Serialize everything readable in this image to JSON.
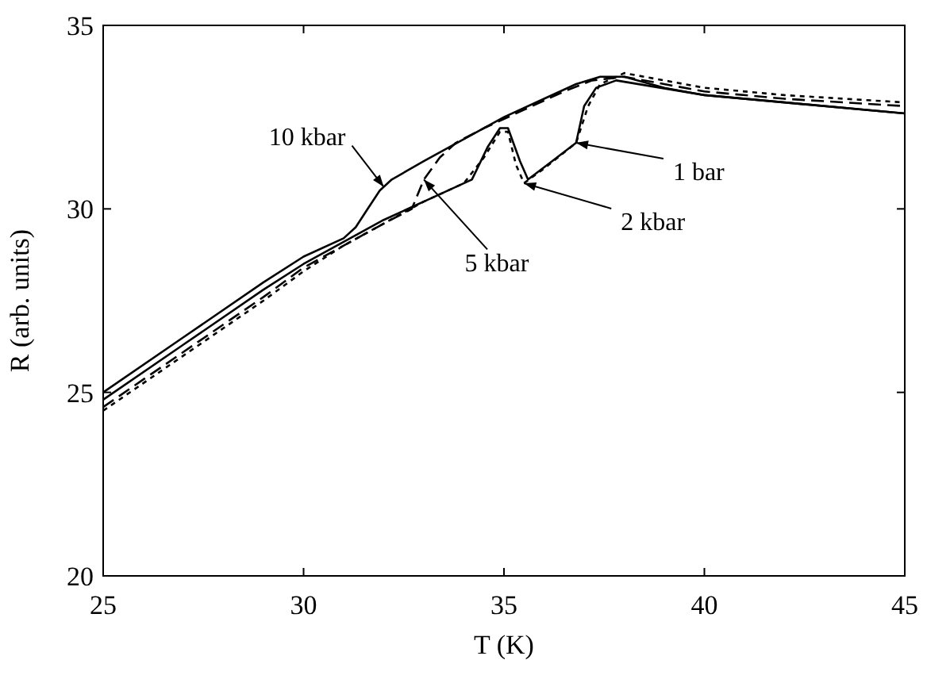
{
  "chart_data": {
    "type": "line",
    "xlabel": "T (K)",
    "ylabel": "R (arb. units)",
    "xlim": [
      25,
      45
    ],
    "ylim": [
      20,
      35
    ],
    "xticks": [
      25,
      30,
      35,
      40,
      45
    ],
    "yticks": [
      20,
      25,
      30,
      35
    ],
    "grid": false,
    "marker": "none",
    "series": [
      {
        "color": "#000000",
        "line_style": "solid",
        "x": [
          25,
          27,
          29,
          30,
          31,
          31.3,
          31.6,
          31.9,
          32.2,
          33,
          34,
          35,
          36,
          36.8,
          37.4,
          38,
          39,
          40,
          42,
          45
        ],
        "values": [
          25.0,
          26.5,
          28.0,
          28.7,
          29.2,
          29.5,
          30.0,
          30.5,
          30.8,
          31.3,
          31.9,
          32.5,
          33.0,
          33.4,
          33.6,
          33.6,
          33.3,
          33.1,
          32.9,
          32.6
        ]
      },
      {
        "color": "#000000",
        "line_style": "dashed",
        "x": [
          25,
          27,
          29,
          30,
          31,
          32,
          32.7,
          33,
          33.4,
          33.8,
          34.5,
          35.5,
          36.5,
          37.2,
          38,
          40,
          42,
          45
        ],
        "values": [
          24.6,
          26.1,
          27.6,
          28.4,
          29.0,
          29.6,
          30.0,
          30.8,
          31.4,
          31.8,
          32.2,
          32.7,
          33.2,
          33.5,
          33.6,
          33.2,
          33.0,
          32.8
        ]
      },
      {
        "color": "#000000",
        "line_style": "dotted",
        "x": [
          25,
          27,
          29,
          30,
          31,
          32,
          33,
          34,
          34.5,
          34.9,
          35.1,
          35.3,
          35.5,
          36,
          36.8,
          37.1,
          37.4,
          38,
          40,
          42,
          45
        ],
        "values": [
          24.5,
          26.0,
          27.5,
          28.3,
          29.0,
          29.6,
          30.2,
          30.7,
          31.4,
          32.1,
          32.1,
          31.2,
          30.7,
          31.1,
          31.8,
          32.8,
          33.4,
          33.7,
          33.3,
          33.1,
          32.9
        ]
      },
      {
        "color": "#000000",
        "line_style": "solid",
        "x": [
          25,
          27,
          29,
          30,
          31,
          32,
          33,
          34.2,
          34.6,
          34.9,
          35.1,
          35.4,
          35.6,
          36.2,
          36.8,
          37.0,
          37.3,
          37.8,
          40,
          42,
          45
        ],
        "values": [
          24.8,
          26.3,
          27.8,
          28.5,
          29.1,
          29.7,
          30.2,
          30.8,
          31.7,
          32.2,
          32.2,
          31.3,
          30.8,
          31.3,
          31.8,
          32.8,
          33.3,
          33.5,
          33.1,
          32.9,
          32.6
        ]
      }
    ],
    "annotations": [
      {
        "text": "10 kbar",
        "x": 32.0,
        "y": 30.6
      },
      {
        "text": "5 kbar",
        "x": 33,
        "y": 30.8
      },
      {
        "text": "2 kbar",
        "x": 35.5,
        "y": 30.7
      },
      {
        "text": "1 bar",
        "x": 36.8,
        "y": 31.8
      }
    ]
  }
}
